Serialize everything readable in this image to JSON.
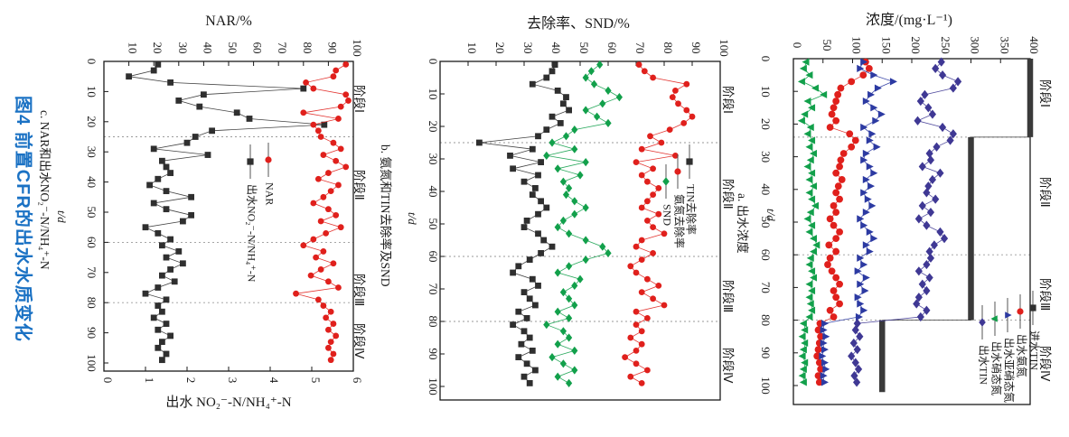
{
  "figure": {
    "title": "图4  前置CFR的出水水质变化",
    "title_color": "#1b72c4"
  },
  "chart_data": [
    {
      "id": "a",
      "type": "scatter",
      "caption": "a. 出水浓度",
      "value_axis": {
        "title": "浓度/(mg·L⁻¹)",
        "min": 0,
        "max": 400,
        "ticks": [
          0,
          50,
          100,
          150,
          200,
          250,
          300,
          350,
          400
        ]
      },
      "time_axis": {
        "label": "t/d",
        "min": 0,
        "max": 100,
        "ticks": [
          0,
          10,
          20,
          30,
          40,
          50,
          60,
          70,
          80,
          90,
          100
        ]
      },
      "stage_dividers": [
        24,
        60,
        80
      ],
      "stages": [
        "阶段Ⅰ",
        "阶段Ⅱ",
        "阶段Ⅲ",
        "阶段Ⅳ"
      ],
      "legend": [
        {
          "label": "进水TIN",
          "marker": "square",
          "color": "#2f2f2f"
        },
        {
          "label": "出水氨氮",
          "marker": "circle",
          "color": "#e0201c"
        },
        {
          "label": "出水亚硝态氮",
          "marker": "tri-right",
          "color": "#2c3aa2"
        },
        {
          "label": "出水硝态氮",
          "marker": "tri-left",
          "color": "#12a04b"
        },
        {
          "label": "出水TIN",
          "marker": "diamond",
          "color": "#3f3894"
        }
      ],
      "step_series": {
        "name": "进水TIN",
        "color": "#3a3a3a",
        "segments": [
          {
            "t0": 0,
            "t1": 24,
            "v": 400
          },
          {
            "t0": 24,
            "t1": 80,
            "v": 300
          },
          {
            "t0": 80,
            "t1": 102,
            "v": 150
          }
        ]
      },
      "t": [
        1,
        3,
        5,
        7,
        9,
        11,
        13,
        15,
        17,
        19,
        21,
        23,
        25,
        27,
        29,
        31,
        33,
        35,
        37,
        39,
        41,
        43,
        45,
        47,
        49,
        51,
        53,
        55,
        57,
        59,
        61,
        63,
        65,
        67,
        69,
        71,
        73,
        75,
        77,
        79,
        81,
        83,
        85,
        87,
        89,
        91,
        93,
        95,
        97,
        99
      ],
      "series": [
        {
          "key": "effluent-nitrate",
          "name": "出水硝态氮",
          "marker": "tri-left",
          "color": "#12a04b",
          "v": [
            22,
            18,
            28,
            15,
            38,
            52,
            25,
            32,
            20,
            15,
            30,
            25,
            32,
            28,
            35,
            30,
            25,
            32,
            28,
            35,
            28,
            32,
            38,
            30,
            25,
            32,
            28,
            35,
            40,
            35,
            30,
            28,
            32,
            35,
            28,
            32,
            28,
            30,
            32,
            28,
            18,
            20,
            16,
            20,
            18,
            16,
            20,
            18,
            16,
            18
          ]
        },
        {
          "key": "effluent-ammonia",
          "name": "出水氨氮",
          "marker": "circle",
          "color": "#e0201c",
          "v": [
            122,
            128,
            118,
            98,
            80,
            75,
            72,
            68,
            65,
            72,
            62,
            95,
            105,
            98,
            85,
            80,
            78,
            72,
            82,
            76,
            72,
            78,
            68,
            72,
            62,
            68,
            78,
            72,
            60,
            72,
            62,
            58,
            65,
            72,
            78,
            68,
            72,
            78,
            62,
            68,
            45,
            42,
            46,
            44,
            42,
            40,
            44,
            46,
            42,
            44
          ]
        },
        {
          "key": "effluent-nitrite",
          "name": "出水亚硝态氮",
          "marker": "tri-right",
          "color": "#2c3aa2",
          "v": [
            118,
            112,
            135,
            168,
            142,
            130,
            122,
            135,
            148,
            138,
            118,
            132,
            128,
            140,
            122,
            118,
            128,
            135,
            122,
            130,
            118,
            125,
            132,
            122,
            112,
            118,
            128,
            135,
            122,
            128,
            112,
            118,
            108,
            122,
            112,
            120,
            108,
            112,
            118,
            110,
            52,
            50,
            54,
            50,
            52,
            48,
            52,
            54,
            50,
            52
          ]
        },
        {
          "key": "effluent-tin",
          "name": "出水TIN",
          "marker": "diamond",
          "color": "#3f3894",
          "v": [
            250,
            240,
            252,
            278,
            270,
            222,
            215,
            228,
            235,
            210,
            252,
            270,
            265,
            242,
            230,
            232,
            218,
            248,
            235,
            228,
            225,
            240,
            218,
            232,
            212,
            225,
            248,
            255,
            238,
            230,
            232,
            225,
            212,
            230,
            218,
            225,
            212,
            208,
            225,
            215,
            108,
            105,
            112,
            102,
            108,
            98,
            105,
            110,
            103,
            107
          ]
        }
      ]
    },
    {
      "id": "b",
      "type": "scatter",
      "caption": "b. 氨氮和TIN去除率及SND",
      "value_axis": {
        "title": "去除率、SND/%",
        "min": 0,
        "max": 100,
        "ticks": [
          10,
          20,
          30,
          40,
          50,
          60,
          70,
          80,
          90,
          100
        ]
      },
      "time_axis": {
        "label": "t/d",
        "min": 0,
        "max": 100,
        "ticks": [
          0,
          10,
          20,
          30,
          40,
          50,
          60,
          70,
          80,
          90,
          100
        ]
      },
      "stage_dividers": [
        25,
        60,
        80
      ],
      "stages": [
        "阶段Ⅰ",
        "阶段Ⅱ",
        "阶段Ⅲ",
        "阶段Ⅳ"
      ],
      "legend": [
        {
          "label": "TIN去除率",
          "marker": "square",
          "color": "#2f2f2f"
        },
        {
          "label": "氨氮去除率",
          "marker": "circle",
          "color": "#e0201c"
        },
        {
          "label": "SND",
          "marker": "diamond",
          "color": "#12a04b"
        }
      ],
      "t": [
        1,
        3,
        5,
        7,
        9,
        11,
        13,
        15,
        17,
        19,
        21,
        23,
        25,
        27,
        29,
        31,
        33,
        35,
        37,
        39,
        41,
        43,
        45,
        47,
        49,
        51,
        53,
        55,
        57,
        59,
        61,
        63,
        65,
        67,
        69,
        71,
        73,
        75,
        77,
        79,
        81,
        83,
        85,
        87,
        89,
        91,
        93,
        95,
        97,
        99
      ],
      "series": [
        {
          "key": "tin-removal",
          "name": "TIN去除率",
          "marker": "square",
          "color": "#2f2f2f",
          "v": [
            41,
            40,
            38,
            33,
            42,
            45,
            44,
            46,
            40,
            43,
            38,
            35,
            14,
            33,
            25,
            36,
            26,
            35,
            30,
            34,
            33,
            36,
            38,
            35,
            31,
            30,
            35,
            37,
            40,
            36,
            32,
            28,
            26,
            33,
            35,
            30,
            32,
            34,
            28,
            31,
            26,
            30,
            32,
            29,
            33,
            28,
            31,
            34,
            30,
            32
          ]
        },
        {
          "key": "snd",
          "name": "SND",
          "marker": "diamond",
          "color": "#12a04b",
          "v": [
            57,
            54,
            52,
            55,
            60,
            64,
            58,
            52,
            56,
            60,
            48,
            45,
            40,
            48,
            38,
            52,
            42,
            50,
            44,
            46,
            45,
            48,
            52,
            48,
            44,
            42,
            46,
            52,
            58,
            60,
            52,
            46,
            42,
            50,
            48,
            44,
            46,
            48,
            42,
            46,
            38,
            44,
            46,
            42,
            48,
            40,
            44,
            48,
            42,
            46
          ]
        },
        {
          "key": "ammonia-removal",
          "name": "氨氮去除率",
          "marker": "circle",
          "color": "#e0201c",
          "v": [
            71,
            73,
            76,
            88,
            84,
            83,
            85,
            88,
            90,
            87,
            82,
            75,
            79,
            72,
            84,
            70,
            76,
            72,
            74,
            78,
            76,
            74,
            72,
            78,
            74,
            76,
            80,
            72,
            70,
            76,
            72,
            68,
            70,
            74,
            78,
            72,
            76,
            80,
            70,
            74,
            70,
            72,
            68,
            72,
            70,
            66,
            70,
            74,
            68,
            72
          ]
        }
      ]
    },
    {
      "id": "c",
      "type": "scatter",
      "caption": "c. NAR和出水NO₂⁻-N/NH₄⁺-N",
      "value_axis": {
        "title": "NAR/%",
        "min": 0,
        "max": 100,
        "ticks": [
          10,
          20,
          30,
          40,
          50,
          60,
          70,
          80,
          90,
          100
        ]
      },
      "ratio_axis": {
        "title": "出水 NO₂⁻-N/NH₄⁺-N",
        "min": 0,
        "max": 6,
        "ticks": [
          0,
          1,
          2,
          3,
          4,
          5,
          6
        ]
      },
      "time_axis": {
        "label": "t/d",
        "min": 0,
        "max": 100,
        "ticks": [
          0,
          10,
          20,
          30,
          40,
          50,
          60,
          70,
          80,
          90,
          100
        ]
      },
      "stage_dividers": [
        25,
        60,
        80
      ],
      "stages": [
        "阶段Ⅰ",
        "阶段Ⅱ",
        "阶段Ⅲ",
        "阶段Ⅳ"
      ],
      "legend": [
        {
          "label": "NAR",
          "marker": "circle",
          "color": "#e0201c"
        },
        {
          "label": "出水NO₂⁻-N/NH₄⁺-N",
          "marker": "square",
          "color": "#2f2f2f"
        }
      ],
      "t": [
        1,
        3,
        5,
        7,
        9,
        11,
        13,
        15,
        17,
        19,
        21,
        23,
        25,
        27,
        29,
        31,
        33,
        35,
        37,
        39,
        41,
        43,
        45,
        47,
        49,
        51,
        53,
        55,
        57,
        59,
        61,
        63,
        65,
        67,
        69,
        71,
        73,
        75,
        77,
        79,
        81,
        83,
        85,
        87,
        89,
        91,
        93,
        95,
        97,
        99
      ],
      "series": [
        {
          "key": "effluent-ratio",
          "name": "出水NO₂⁻-N/NH₄⁺-N",
          "marker": "square",
          "color": "#2f2f2f",
          "axis": "ratio",
          "v": [
            1.3,
            1.2,
            0.6,
            1.6,
            4.8,
            2.4,
            1.8,
            2.3,
            3.2,
            3.5,
            5.3,
            2.6,
            2.2,
            2.0,
            1.2,
            2.5,
            1.4,
            1.5,
            1.6,
            1.3,
            1.1,
            1.5,
            2.1,
            1.2,
            1.5,
            2.1,
            1.9,
            1.0,
            1.3,
            1.6,
            1.4,
            1.8,
            1.5,
            1.9,
            1.6,
            1.4,
            1.7,
            1.3,
            1.0,
            1.5,
            1.3,
            1.4,
            1.2,
            1.5,
            1.3,
            1.6,
            1.4,
            1.3,
            1.5,
            1.4
          ]
        },
        {
          "key": "nar",
          "name": "NAR",
          "marker": "circle",
          "color": "#e0201c",
          "axis": "value",
          "v": [
            97,
            93,
            92,
            81,
            84,
            97,
            98,
            95,
            80,
            94,
            84,
            86,
            87,
            92,
            95,
            88,
            93,
            97,
            90,
            86,
            94,
            91,
            88,
            84,
            90,
            93,
            87,
            95,
            89,
            84,
            80,
            88,
            85,
            92,
            87,
            83,
            90,
            94,
            77,
            86,
            88,
            91,
            89,
            92,
            90,
            93,
            91,
            90,
            92,
            91
          ]
        }
      ]
    }
  ]
}
